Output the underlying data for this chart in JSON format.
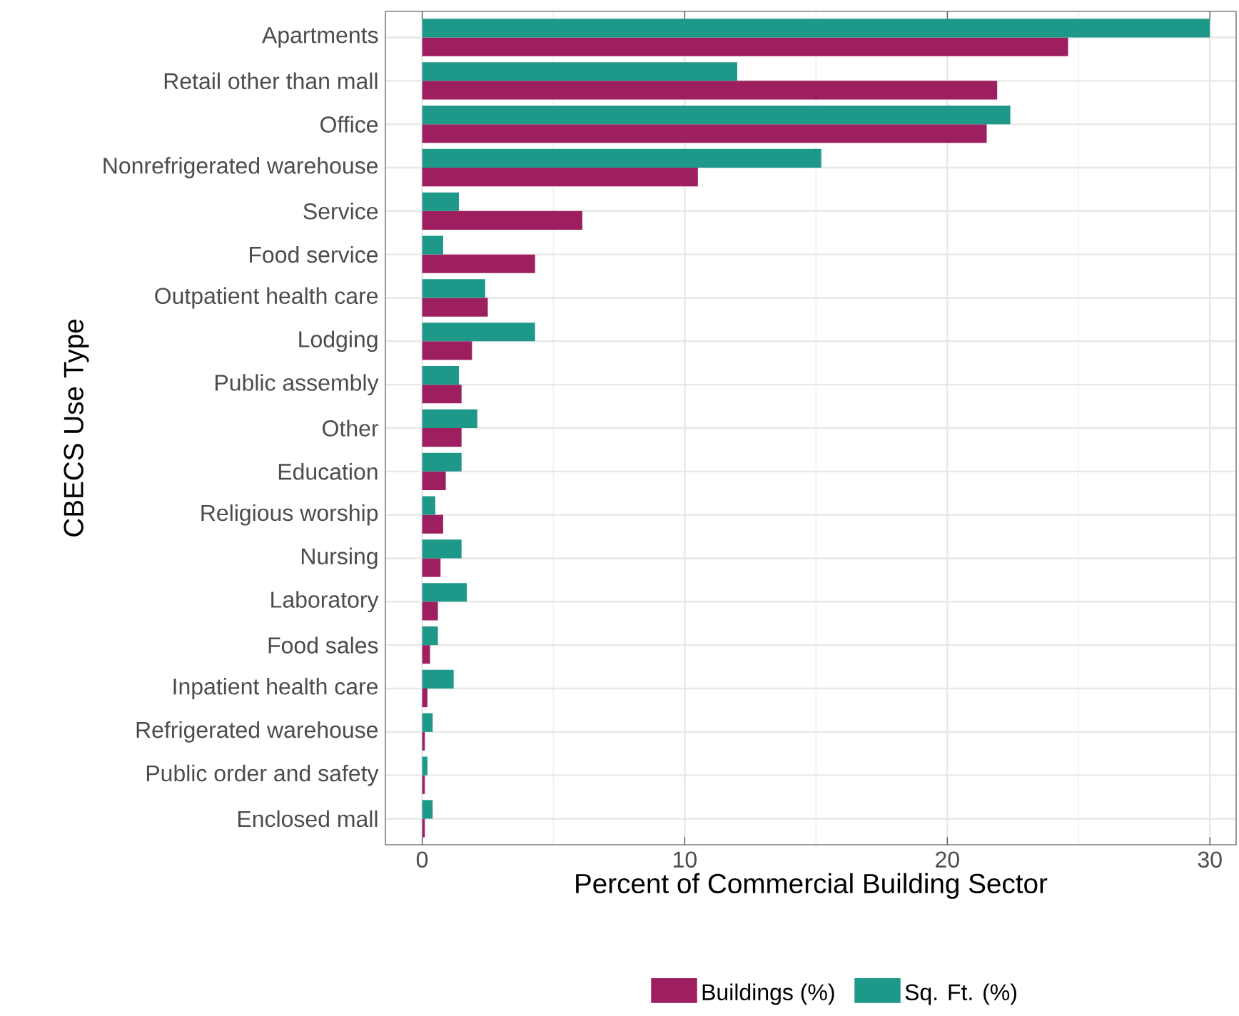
{
  "chart_data": {
    "type": "bar",
    "orientation": "horizontal",
    "xlabel": "Percent of Commercial Building Sector",
    "ylabel": "CBECS Use Type",
    "categories": [
      "Apartments",
      "Retail other than mall",
      "Office",
      "Nonrefrigerated warehouse",
      "Service",
      "Food service",
      "Outpatient health care",
      "Lodging",
      "Public assembly",
      "Other",
      "Education",
      "Religious worship",
      "Nursing",
      "Laboratory",
      "Food sales",
      "Inpatient health care",
      "Refrigerated warehouse",
      "Public order and safety",
      "Enclosed mall"
    ],
    "series": [
      {
        "name": "Buildings (%)",
        "color": "#9e1f5f",
        "values": [
          24.6,
          21.9,
          21.5,
          10.5,
          6.1,
          4.3,
          2.5,
          1.9,
          1.5,
          1.5,
          0.9,
          0.8,
          0.7,
          0.6,
          0.3,
          0.2,
          0.1,
          0.1,
          0.1
        ]
      },
      {
        "name": "Sq. Ft. (%)",
        "color": "#1e9989",
        "values": [
          30.0,
          12.0,
          22.4,
          15.2,
          1.4,
          0.8,
          2.4,
          4.3,
          1.4,
          2.1,
          1.5,
          0.5,
          1.5,
          1.7,
          0.6,
          1.2,
          0.4,
          0.2,
          0.4
        ]
      }
    ],
    "xlim": [
      -1.4,
      31.0
    ],
    "xticks": [
      0,
      10,
      20,
      30
    ],
    "grid": true,
    "legend": "bottom"
  }
}
